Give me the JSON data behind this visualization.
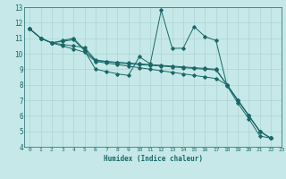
{
  "xlabel": "Humidex (Indice chaleur)",
  "xlim": [
    -0.5,
    23
  ],
  "ylim": [
    4,
    13
  ],
  "xticks": [
    0,
    1,
    2,
    3,
    4,
    5,
    6,
    7,
    8,
    9,
    10,
    11,
    12,
    13,
    14,
    15,
    16,
    17,
    18,
    19,
    20,
    21,
    22,
    23
  ],
  "yticks": [
    4,
    5,
    6,
    7,
    8,
    9,
    10,
    11,
    12,
    13
  ],
  "bg_color": "#c6e8e8",
  "grid_color": "#aad4d4",
  "line_color": "#1a6868",
  "series": [
    [
      11.6,
      11.0,
      10.7,
      10.8,
      10.9,
      10.2,
      9.0,
      8.85,
      8.7,
      8.6,
      9.8,
      9.35,
      12.8,
      10.35,
      10.35,
      11.75,
      11.1,
      10.85,
      7.95,
      6.8,
      5.8,
      4.7,
      4.55
    ],
    [
      11.6,
      11.0,
      10.7,
      10.85,
      11.0,
      10.25,
      9.55,
      9.5,
      9.45,
      9.4,
      9.35,
      9.3,
      9.25,
      9.2,
      9.15,
      9.1,
      9.05,
      9.0,
      8.0,
      7.0,
      6.0,
      5.0,
      4.55
    ],
    [
      11.6,
      11.0,
      10.7,
      10.6,
      10.5,
      10.4,
      9.6,
      9.5,
      9.4,
      9.35,
      9.3,
      9.25,
      9.2,
      9.15,
      9.1,
      9.05,
      9.0,
      8.95,
      8.0,
      7.0,
      6.0,
      5.0,
      4.55
    ],
    [
      11.6,
      11.0,
      10.7,
      10.5,
      10.3,
      10.1,
      9.5,
      9.4,
      9.3,
      9.2,
      9.1,
      9.0,
      8.9,
      8.8,
      8.7,
      8.6,
      8.5,
      8.4,
      8.0,
      7.0,
      6.0,
      5.0,
      4.55
    ]
  ]
}
